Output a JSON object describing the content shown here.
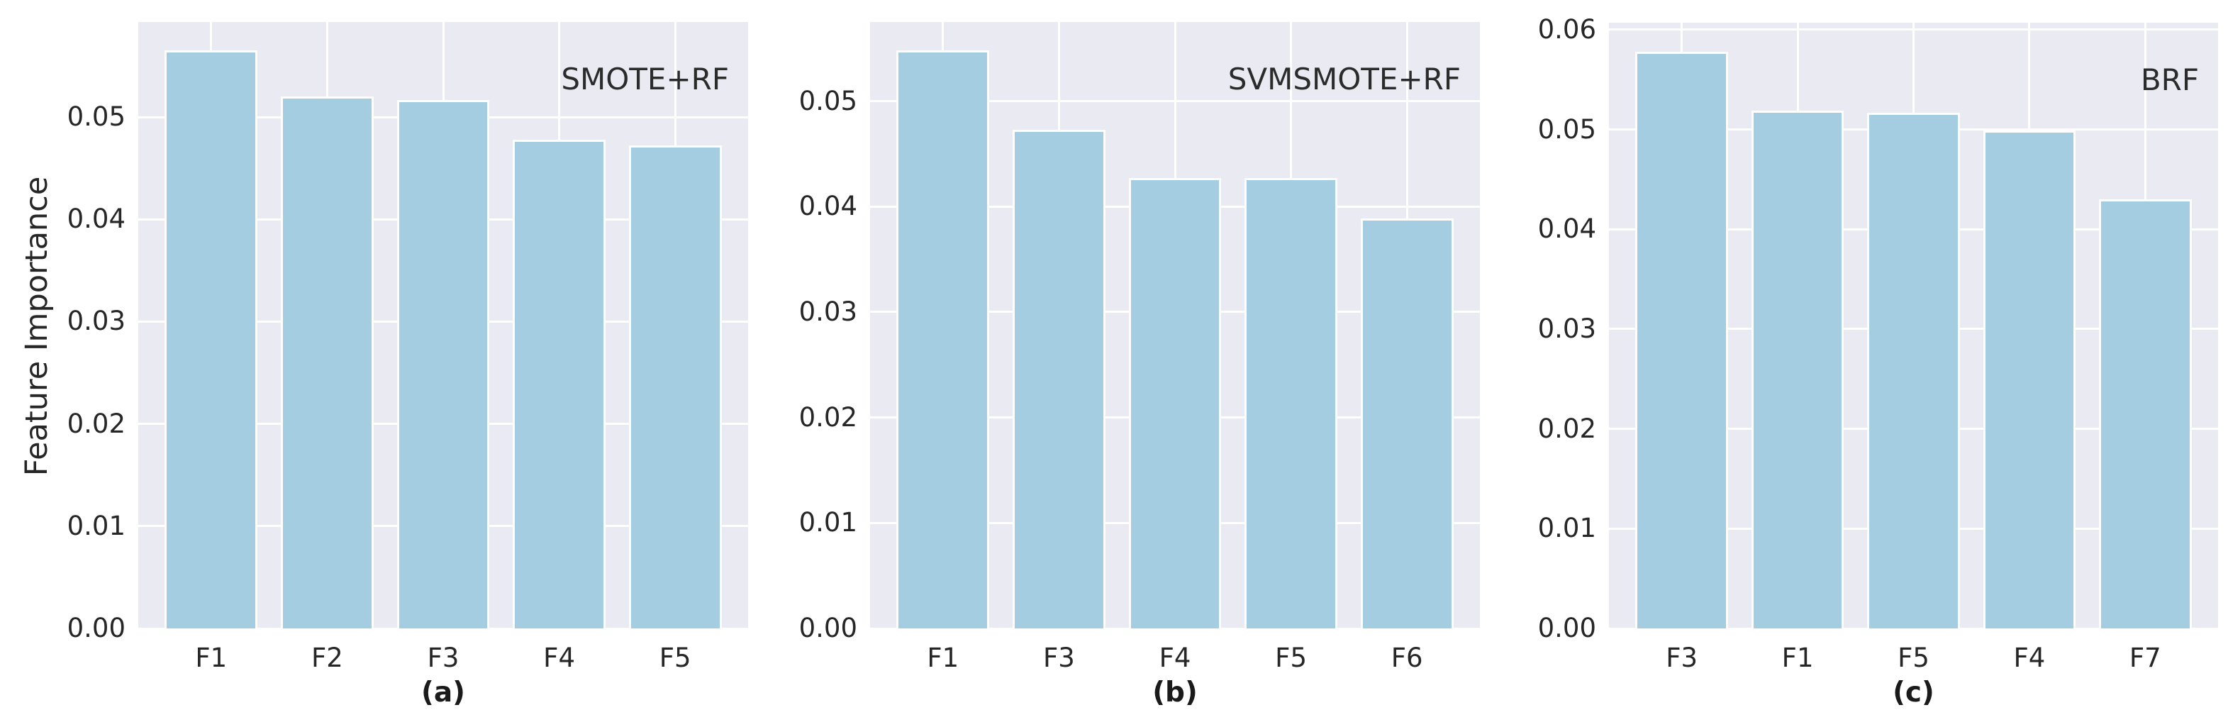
{
  "figure": {
    "ylabel": "Feature Importance",
    "background_color": "#ffffff",
    "panel_background_color": "#eaeaf2",
    "grid_color": "#ffffff",
    "bar_color": "#a5cde2",
    "bar_edge_color": "#ffffff",
    "text_color": "#262626"
  },
  "chart_data": [
    {
      "type": "bar",
      "annotation": "SMOTE+RF",
      "caption": "(a)",
      "categories": [
        "F1",
        "F2",
        "F3",
        "F4",
        "F5"
      ],
      "values": [
        0.0565,
        0.052,
        0.0517,
        0.0478,
        0.0472
      ],
      "title": "",
      "xlabel": "",
      "ylabel": "Feature Importance",
      "yticks": [
        "0.00",
        "0.01",
        "0.02",
        "0.03",
        "0.04",
        "0.05"
      ],
      "ylim": [
        0,
        0.0593
      ],
      "grid": true,
      "legend": "none"
    },
    {
      "type": "bar",
      "annotation": "SVMSMOTE+RF",
      "caption": "(b)",
      "categories": [
        "F1",
        "F3",
        "F4",
        "F5",
        "F6"
      ],
      "values": [
        0.0548,
        0.0473,
        0.0427,
        0.0427,
        0.0389
      ],
      "title": "",
      "xlabel": "",
      "ylabel": "",
      "yticks": [
        "0.00",
        "0.01",
        "0.02",
        "0.03",
        "0.04",
        "0.05"
      ],
      "ylim": [
        0,
        0.0575
      ],
      "grid": true,
      "legend": "none"
    },
    {
      "type": "bar",
      "annotation": "BRF",
      "caption": "(c)",
      "categories": [
        "F3",
        "F1",
        "F5",
        "F4",
        "F7"
      ],
      "values": [
        0.0578,
        0.0519,
        0.0517,
        0.0499,
        0.043
      ],
      "title": "",
      "xlabel": "",
      "ylabel": "",
      "yticks": [
        "0.00",
        "0.01",
        "0.02",
        "0.03",
        "0.04",
        "0.05",
        "0.06"
      ],
      "ylim": [
        0,
        0.0607
      ],
      "grid": true,
      "legend": "none"
    }
  ]
}
